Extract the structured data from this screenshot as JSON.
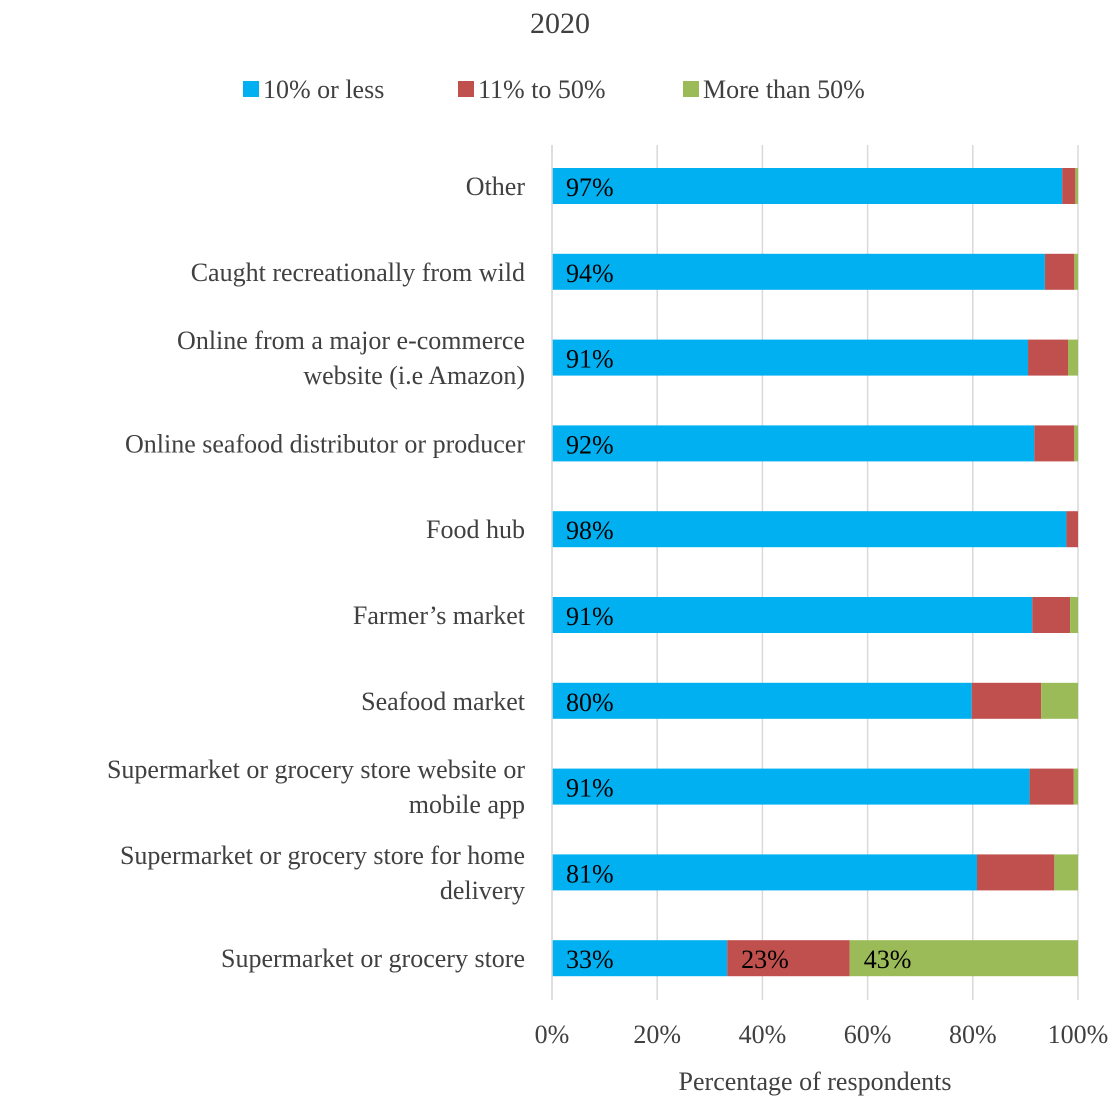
{
  "chart_data": {
    "type": "bar",
    "orientation": "horizontal",
    "stacked": true,
    "title": "2020",
    "xlabel": "Percentage of respondents",
    "ylabel": "",
    "xlim": [
      0,
      100
    ],
    "x_ticks": [
      "0%",
      "20%",
      "40%",
      "60%",
      "80%",
      "100%"
    ],
    "grid": true,
    "legend_position": "top",
    "categories": [
      [
        "Other"
      ],
      [
        "Caught recreationally from wild"
      ],
      [
        "Online from a major e-commerce",
        "website (i.e Amazon)"
      ],
      [
        "Online seafood distributor or producer"
      ],
      [
        "Food hub"
      ],
      [
        "Farmer’s market"
      ],
      [
        "Seafood market"
      ],
      [
        "Supermarket or grocery store website or",
        "mobile app"
      ],
      [
        "Supermarket or grocery store for home",
        "delivery"
      ],
      [
        "Supermarket or grocery store"
      ]
    ],
    "series": [
      {
        "name": "10% or less",
        "color": "#00B0F0",
        "values": [
          97,
          93.7,
          90.5,
          91.7,
          97.8,
          91.3,
          79.8,
          90.8,
          80.8,
          33.3
        ],
        "labels": [
          "97%",
          "94%",
          "91%",
          "92%",
          "98%",
          "91%",
          "80%",
          "91%",
          "81%",
          "33%"
        ]
      },
      {
        "name": "11% to 50%",
        "color": "#C0504D",
        "values": [
          2.5,
          5.6,
          7.6,
          7.6,
          2.2,
          7.2,
          13.2,
          8.4,
          14.7,
          23.3
        ],
        "labels": [
          "",
          "",
          "",
          "",
          "",
          "",
          "",
          "",
          "",
          "23%"
        ]
      },
      {
        "name": "More than 50%",
        "color": "#9BBB59",
        "values": [
          0.5,
          0.7,
          1.9,
          0.7,
          0.0,
          1.5,
          7.0,
          0.8,
          4.5,
          43.4
        ],
        "labels": [
          "",
          "",
          "",
          "",
          "",
          "",
          "",
          "",
          "",
          "43%"
        ]
      }
    ]
  }
}
